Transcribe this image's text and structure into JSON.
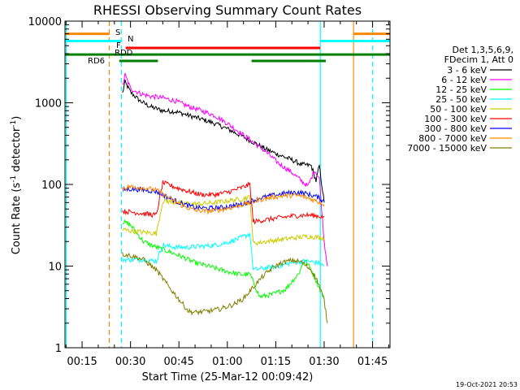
{
  "chart_data": {
    "type": "line",
    "title": "RHESSI Observing Summary Count Rates",
    "xlabel": "Start Time (25-Mar-12 00:09:42)",
    "ylabel_main": "Count Rate (s",
    "ylabel_sup1": "-1",
    "ylabel_mid": " detector",
    "ylabel_sup2": "-1",
    "ylabel_end": ")",
    "y_scale": "log",
    "ylim": [
      1,
      10000
    ],
    "xlim": [
      9.7,
      110.4
    ],
    "x_unit": "minutes after 00:00 UT",
    "x_ticks": [
      {
        "value": 15,
        "label": "00:15"
      },
      {
        "value": 30,
        "label": "00:30"
      },
      {
        "value": 45,
        "label": "00:45"
      },
      {
        "value": 60,
        "label": "01:00"
      },
      {
        "value": 75,
        "label": "01:15"
      },
      {
        "value": 90,
        "label": "01:30"
      },
      {
        "value": 105,
        "label": "01:45"
      }
    ],
    "y_ticks": [
      {
        "value": 1,
        "label": "1"
      },
      {
        "value": 10,
        "label": "10"
      },
      {
        "value": 100,
        "label": "100"
      },
      {
        "value": 1000,
        "label": "1000"
      },
      {
        "value": 10000,
        "label": "10000"
      }
    ],
    "legend": {
      "position": "right",
      "header": [
        "Det 1,3,5,6,9,",
        "FDecim 1, Att 0"
      ]
    },
    "series": [
      {
        "name": "3 - 6 keV",
        "color": "#000000",
        "points": [
          [
            27.5,
            1300
          ],
          [
            28.3,
            1800
          ],
          [
            30,
            1350
          ],
          [
            33,
            1050
          ],
          [
            36,
            900
          ],
          [
            40,
            800
          ],
          [
            44,
            780
          ],
          [
            48,
            700
          ],
          [
            52,
            630
          ],
          [
            56,
            560
          ],
          [
            60,
            480
          ],
          [
            64,
            400
          ],
          [
            68,
            330
          ],
          [
            72,
            270
          ],
          [
            76,
            230
          ],
          [
            80,
            200
          ],
          [
            83,
            175
          ],
          [
            86,
            170
          ],
          [
            87.5,
            110
          ],
          [
            88.5,
            170
          ],
          [
            90,
            60
          ]
        ]
      },
      {
        "name": "6 - 12 keV",
        "color": "#ff00ff",
        "points": [
          [
            27.5,
            1600
          ],
          [
            28.3,
            2200
          ],
          [
            30,
            1500
          ],
          [
            33,
            1300
          ],
          [
            36,
            1200
          ],
          [
            40,
            1150
          ],
          [
            44,
            1050
          ],
          [
            48,
            900
          ],
          [
            52,
            800
          ],
          [
            56,
            700
          ],
          [
            60,
            560
          ],
          [
            64,
            430
          ],
          [
            68,
            330
          ],
          [
            72,
            250
          ],
          [
            76,
            180
          ],
          [
            80,
            140
          ],
          [
            83,
            110
          ],
          [
            85,
            95
          ],
          [
            87,
            150
          ],
          [
            88.5,
            120
          ],
          [
            90,
            20
          ],
          [
            91,
            10
          ]
        ]
      },
      {
        "name": "12 - 25 keV",
        "color": "#00ff00",
        "points": [
          [
            27.5,
            35
          ],
          [
            30,
            32
          ],
          [
            34,
            20
          ],
          [
            38,
            17
          ],
          [
            42,
            15
          ],
          [
            46,
            13
          ],
          [
            50,
            11
          ],
          [
            54,
            10
          ],
          [
            58,
            9
          ],
          [
            62,
            8.2
          ],
          [
            65,
            7.8
          ],
          [
            67,
            8
          ],
          [
            70,
            4.2
          ],
          [
            74,
            4.5
          ],
          [
            78,
            5.2
          ],
          [
            82,
            8
          ],
          [
            84,
            12
          ],
          [
            86,
            9
          ],
          [
            88,
            6
          ],
          [
            90,
            4
          ]
        ]
      },
      {
        "name": "25 - 50 keV",
        "color": "#00ffff",
        "points": [
          [
            27.5,
            12
          ],
          [
            30,
            12
          ],
          [
            34,
            12
          ],
          [
            38,
            11.5
          ],
          [
            40,
            18
          ],
          [
            44,
            17
          ],
          [
            48,
            17
          ],
          [
            52,
            17.5
          ],
          [
            56,
            18
          ],
          [
            60,
            19.5
          ],
          [
            64,
            22
          ],
          [
            67,
            25
          ],
          [
            68,
            9
          ],
          [
            72,
            9.5
          ],
          [
            76,
            10
          ],
          [
            80,
            11
          ],
          [
            84,
            11.5
          ],
          [
            86,
            11.3
          ],
          [
            88,
            11
          ],
          [
            90,
            10
          ]
        ]
      },
      {
        "name": "50 - 100 keV",
        "color": "#cccc00",
        "points": [
          [
            27.5,
            28
          ],
          [
            30,
            27
          ],
          [
            34,
            26
          ],
          [
            38,
            25
          ],
          [
            40,
            63
          ],
          [
            44,
            60
          ],
          [
            48,
            58
          ],
          [
            52,
            58
          ],
          [
            56,
            60
          ],
          [
            60,
            63
          ],
          [
            64,
            66
          ],
          [
            67,
            70
          ],
          [
            68,
            19
          ],
          [
            72,
            20
          ],
          [
            76,
            21
          ],
          [
            80,
            22
          ],
          [
            84,
            23
          ],
          [
            86,
            23
          ],
          [
            88,
            22.5
          ],
          [
            90,
            22
          ]
        ]
      },
      {
        "name": "100 - 300 keV",
        "color": "#ff0000",
        "points": [
          [
            27.5,
            47
          ],
          [
            30,
            46
          ],
          [
            34,
            44
          ],
          [
            38,
            42
          ],
          [
            40,
            105
          ],
          [
            44,
            92
          ],
          [
            48,
            82
          ],
          [
            52,
            75
          ],
          [
            56,
            75
          ],
          [
            60,
            80
          ],
          [
            64,
            90
          ],
          [
            67,
            100
          ],
          [
            68,
            35
          ],
          [
            72,
            37
          ],
          [
            76,
            39
          ],
          [
            80,
            41
          ],
          [
            84,
            42
          ],
          [
            86,
            42
          ],
          [
            88,
            41
          ],
          [
            90,
            40
          ]
        ]
      },
      {
        "name": "300 - 800 keV",
        "color": "#0000ff",
        "points": [
          [
            27.5,
            86
          ],
          [
            30,
            88
          ],
          [
            34,
            86
          ],
          [
            38,
            82
          ],
          [
            42,
            68
          ],
          [
            46,
            58
          ],
          [
            50,
            52
          ],
          [
            54,
            51
          ],
          [
            58,
            52
          ],
          [
            62,
            55
          ],
          [
            65,
            58
          ],
          [
            67,
            62
          ],
          [
            70,
            68
          ],
          [
            74,
            73
          ],
          [
            78,
            78
          ],
          [
            82,
            80
          ],
          [
            84,
            78
          ],
          [
            86,
            74
          ],
          [
            88,
            70
          ],
          [
            90,
            62
          ]
        ]
      },
      {
        "name": "800 - 7000 keV",
        "color": "#ff8800",
        "points": [
          [
            27.5,
            90
          ],
          [
            30,
            94
          ],
          [
            34,
            91
          ],
          [
            38,
            85
          ],
          [
            42,
            68
          ],
          [
            46,
            55
          ],
          [
            50,
            48
          ],
          [
            54,
            47
          ],
          [
            58,
            49
          ],
          [
            62,
            53
          ],
          [
            65,
            57
          ],
          [
            67,
            60
          ],
          [
            70,
            65
          ],
          [
            74,
            70
          ],
          [
            78,
            73
          ],
          [
            82,
            73
          ],
          [
            84,
            70
          ],
          [
            86,
            66
          ],
          [
            88,
            62
          ],
          [
            90,
            57
          ]
        ]
      },
      {
        "name": "7000 - 15000 keV",
        "color": "#808000",
        "points": [
          [
            27.5,
            14
          ],
          [
            30,
            13.5
          ],
          [
            34,
            12
          ],
          [
            38,
            9
          ],
          [
            42,
            5.5
          ],
          [
            46,
            3.5
          ],
          [
            48,
            2.8
          ],
          [
            50,
            2.7
          ],
          [
            54,
            2.8
          ],
          [
            58,
            3
          ],
          [
            62,
            3.4
          ],
          [
            65,
            4
          ],
          [
            68,
            5.5
          ],
          [
            71,
            7.5
          ],
          [
            74,
            9.5
          ],
          [
            77,
            11
          ],
          [
            80,
            11.8
          ],
          [
            83,
            11.2
          ],
          [
            86,
            9
          ],
          [
            88,
            6.5
          ],
          [
            90,
            3.8
          ],
          [
            91,
            2
          ]
        ]
      }
    ],
    "vertical_markers": [
      {
        "x": 10.1,
        "color": "#00ffff",
        "style": "solid"
      },
      {
        "x": 23.4,
        "color": "#ff8800",
        "style": "dashed"
      },
      {
        "x": 27.2,
        "color": "#00ffff",
        "style": "dashed"
      },
      {
        "x": 88.8,
        "color": "#00ffff",
        "style": "solid"
      },
      {
        "x": 99.1,
        "color": "#ff8800",
        "style": "solid"
      },
      {
        "x": 105.0,
        "color": "#00ffff",
        "style": "dashed"
      }
    ],
    "state_bars": [
      {
        "label": "S",
        "color": "#ff8800",
        "level": 7000,
        "segments": [
          [
            9.7,
            23.5
          ],
          [
            99.2,
            110.4
          ]
        ]
      },
      {
        "label": "N",
        "color": "#00ffff",
        "level": 5700,
        "segments": [
          [
            9.7,
            27.3
          ],
          [
            88.9,
            110.4
          ]
        ]
      },
      {
        "label": "F",
        "color": "#ff0000",
        "level": 4700,
        "segments": [
          [
            28.5,
            88.8
          ]
        ]
      },
      {
        "label": "RDD",
        "color": "#008000",
        "level": 3900,
        "segments": [
          [
            9.7,
            38.5
          ],
          [
            38.5,
            67.5
          ],
          [
            67.5,
            110.4
          ]
        ]
      },
      {
        "label": "RD6",
        "color": "#008000",
        "level": 3250,
        "segments": [
          [
            26.5,
            38.5
          ],
          [
            67.5,
            90.5
          ]
        ]
      }
    ],
    "grid": false,
    "timestamp": "19-Oct-2021 20:53"
  }
}
